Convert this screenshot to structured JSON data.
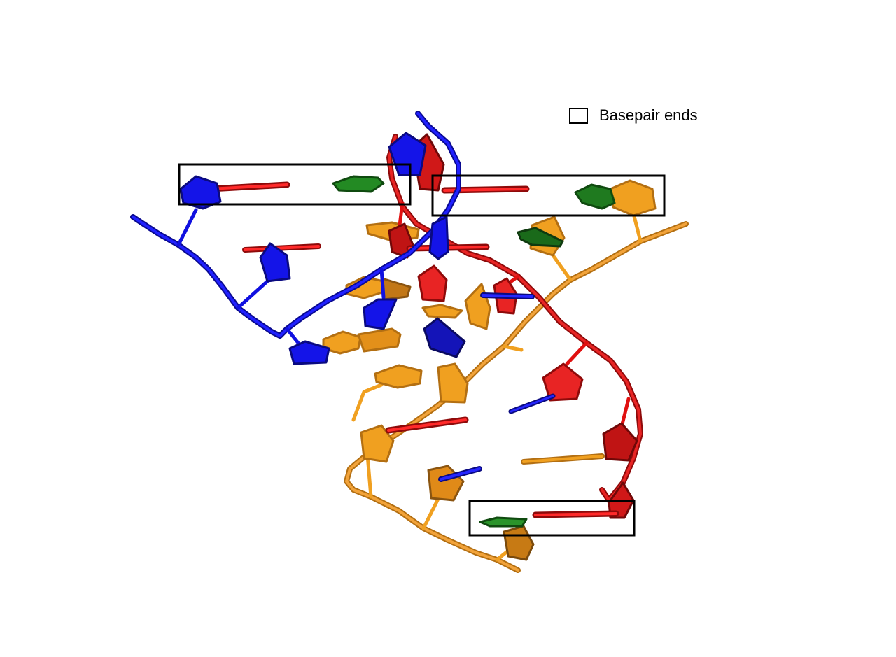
{
  "legend": {
    "label": "Basepair ends"
  },
  "colors": {
    "strand_blue": "#1010e0",
    "strand_red": "#e01010",
    "strand_orange": "#f0a020",
    "base_green": "#207a20",
    "box_outline": "#000000"
  },
  "structure": {
    "strands": [
      "blue",
      "red",
      "orange"
    ],
    "highlighted_regions": 3
  }
}
